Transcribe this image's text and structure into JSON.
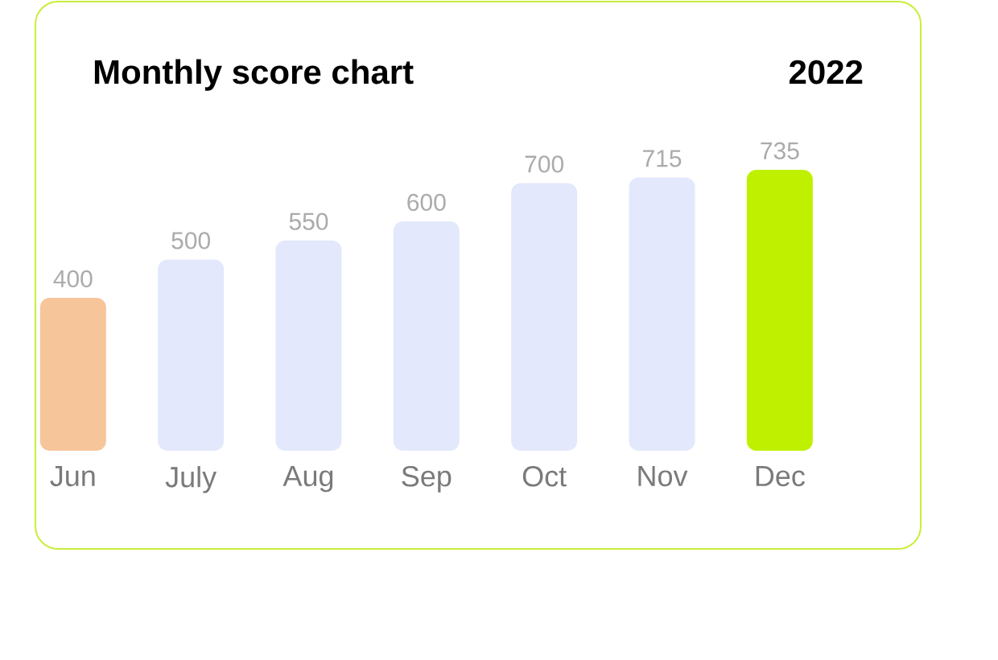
{
  "chart_data": {
    "type": "bar",
    "title": "Monthly score chart",
    "subtitle": "2022",
    "categories": [
      "Jun",
      "July",
      "Aug",
      "Sep",
      "Oct",
      "Nov",
      "Dec"
    ],
    "values": [
      400,
      500,
      550,
      600,
      700,
      715,
      735
    ],
    "colors": [
      "#f7c59a",
      "#e3e8fc",
      "#e3e8fc",
      "#e3e8fc",
      "#e3e8fc",
      "#e3e8fc",
      "#bff000"
    ],
    "data_labels": true
  }
}
